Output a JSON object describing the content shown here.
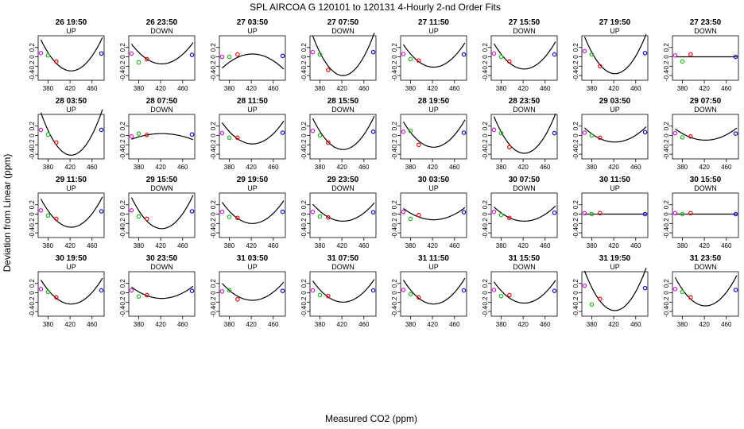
{
  "chart_data": {
    "type": "scatter",
    "title": "SPL   AIRCOA G   120101 to 120131   4-Hourly 2-nd Order Fits",
    "xlabel": "Measured CO2 (ppm)",
    "ylabel": "Deviation from Linear (ppm)",
    "xlim": [
      362,
      482
    ],
    "ylim": [
      -0.5,
      0.45
    ],
    "xticks": [
      380,
      420,
      460
    ],
    "xtick_labels": [
      "380",
      "420",
      "460"
    ],
    "yticks": [
      -0.4,
      -0.2,
      0.0,
      0.2
    ],
    "ytick_labels": [
      "-0.4",
      "-0.2",
      "0",
      "0.2"
    ],
    "point_colors": {
      "std1": "#cc22cc",
      "std2": "#22bb22",
      "std3": "#dd1111",
      "std4": "#1111cc"
    },
    "panels": [
      {
        "time": "26 19:50",
        "dir": "UP",
        "a": 0.00022,
        "c": -0.3,
        "pts": [
          0.08,
          0.03,
          -0.1,
          0.07
        ]
      },
      {
        "time": "26 23:50",
        "dir": "DOWN",
        "a": 0.00014,
        "c": -0.15,
        "pts": [
          0.07,
          -0.12,
          -0.05,
          0.04
        ]
      },
      {
        "time": "27 03:50",
        "dir": "UP",
        "a": -0.0001,
        "c": 0.06,
        "pts": [
          0.0,
          0.0,
          0.05,
          0.02
        ]
      },
      {
        "time": "27 07:50",
        "dir": "DOWN",
        "a": 0.00028,
        "c": -0.4,
        "pts": [
          0.1,
          0.05,
          -0.28,
          0.1
        ]
      },
      {
        "time": "27 11:50",
        "dir": "UP",
        "a": 0.00016,
        "c": -0.22,
        "pts": [
          0.06,
          -0.05,
          -0.08,
          0.05
        ]
      },
      {
        "time": "27 15:50",
        "dir": "DOWN",
        "a": 0.00018,
        "c": -0.26,
        "pts": [
          0.07,
          0.0,
          -0.1,
          0.05
        ]
      },
      {
        "time": "27 19:50",
        "dir": "UP",
        "a": 0.00026,
        "c": -0.36,
        "pts": [
          0.12,
          0.05,
          -0.2,
          0.08
        ]
      },
      {
        "time": "27 23:50",
        "dir": "DOWN",
        "a": 0.0,
        "c": 0.0,
        "pts": [
          0.03,
          -0.1,
          0.05,
          0.0
        ]
      },
      {
        "time": "28 03:50",
        "dir": "UP",
        "a": 0.0003,
        "c": -0.42,
        "pts": [
          0.12,
          0.02,
          -0.15,
          0.12
        ]
      },
      {
        "time": "28 07:50",
        "dir": "DOWN",
        "a": -4e-05,
        "c": 0.04,
        "pts": [
          -0.02,
          0.04,
          0.01,
          0.02
        ]
      },
      {
        "time": "28 11:50",
        "dir": "UP",
        "a": 0.00015,
        "c": -0.18,
        "pts": [
          0.05,
          -0.05,
          -0.05,
          0.06
        ]
      },
      {
        "time": "28 15:50",
        "dir": "DOWN",
        "a": 0.00022,
        "c": -0.3,
        "pts": [
          0.1,
          0.0,
          -0.15,
          0.08
        ]
      },
      {
        "time": "28 19:50",
        "dir": "UP",
        "a": 0.00018,
        "c": -0.25,
        "pts": [
          0.08,
          0.1,
          -0.2,
          0.06
        ]
      },
      {
        "time": "28 23:50",
        "dir": "DOWN",
        "a": 0.00026,
        "c": -0.38,
        "pts": [
          0.12,
          0.05,
          -0.25,
          0.05
        ]
      },
      {
        "time": "29 03:50",
        "dir": "UP",
        "a": 0.0001,
        "c": -0.14,
        "pts": [
          0.06,
          0.0,
          -0.05,
          0.07
        ]
      },
      {
        "time": "29 07:50",
        "dir": "DOWN",
        "a": 8e-05,
        "c": -0.1,
        "pts": [
          0.05,
          -0.04,
          -0.02,
          0.04
        ]
      },
      {
        "time": "29 11:50",
        "dir": "UP",
        "a": 0.0002,
        "c": -0.28,
        "pts": [
          0.08,
          -0.03,
          -0.1,
          0.06
        ]
      },
      {
        "time": "29 15:50",
        "dir": "DOWN",
        "a": 0.00022,
        "c": -0.31,
        "pts": [
          0.08,
          -0.05,
          -0.1,
          0.06
        ]
      },
      {
        "time": "29 19:50",
        "dir": "UP",
        "a": 0.00015,
        "c": -0.2,
        "pts": [
          0.05,
          -0.06,
          -0.08,
          0.05
        ]
      },
      {
        "time": "29 23:50",
        "dir": "DOWN",
        "a": 0.00012,
        "c": -0.15,
        "pts": [
          0.05,
          -0.05,
          -0.07,
          0.04
        ]
      },
      {
        "time": "30 03:50",
        "dir": "UP",
        "a": 8e-05,
        "c": -0.12,
        "pts": [
          0.05,
          -0.1,
          -0.02,
          0.04
        ]
      },
      {
        "time": "30 07:50",
        "dir": "DOWN",
        "a": 0.0001,
        "c": -0.15,
        "pts": [
          0.05,
          -0.02,
          -0.08,
          0.03
        ]
      },
      {
        "time": "30 11:50",
        "dir": "UP",
        "a": 0.0,
        "c": 0.0,
        "pts": [
          0.02,
          0.0,
          0.02,
          0.0
        ]
      },
      {
        "time": "30 15:50",
        "dir": "DOWN",
        "a": 0.0,
        "c": 0.0,
        "pts": [
          0.02,
          0.0,
          0.02,
          0.0
        ]
      },
      {
        "time": "30 19:50",
        "dir": "UP",
        "a": 0.00017,
        "c": -0.24,
        "pts": [
          0.08,
          0.02,
          -0.1,
          0.05
        ]
      },
      {
        "time": "30 23:50",
        "dir": "DOWN",
        "a": 8e-05,
        "c": -0.12,
        "pts": [
          0.05,
          -0.08,
          -0.05,
          0.04
        ]
      },
      {
        "time": "31 03:50",
        "dir": "UP",
        "a": 0.00012,
        "c": -0.16,
        "pts": [
          0.03,
          0.05,
          -0.14,
          0.04
        ]
      },
      {
        "time": "31 07:50",
        "dir": "DOWN",
        "a": 0.00015,
        "c": -0.2,
        "pts": [
          0.05,
          -0.05,
          -0.07,
          0.05
        ]
      },
      {
        "time": "31 11:50",
        "dir": "UP",
        "a": 0.00017,
        "c": -0.24,
        "pts": [
          0.06,
          -0.03,
          -0.1,
          0.05
        ]
      },
      {
        "time": "31 15:50",
        "dir": "DOWN",
        "a": 0.00015,
        "c": -0.22,
        "pts": [
          0.06,
          -0.07,
          -0.05,
          0.04
        ]
      },
      {
        "time": "31 19:50",
        "dir": "UP",
        "a": 0.00028,
        "c": -0.38,
        "pts": [
          0.15,
          -0.25,
          -0.13,
          0.1
        ]
      },
      {
        "time": "31 23:50",
        "dir": "DOWN",
        "a": 0.0002,
        "c": -0.28,
        "pts": [
          0.08,
          0.02,
          -0.1,
          0.06
        ]
      }
    ],
    "point_x": [
      367,
      380,
      395,
      477
    ]
  }
}
